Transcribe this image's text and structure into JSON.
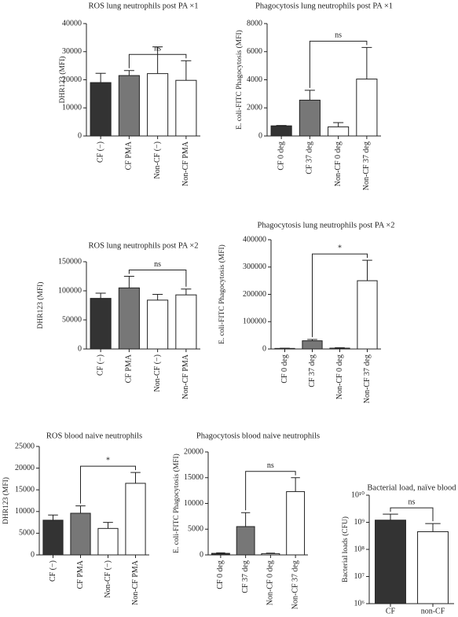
{
  "chart_data": [
    {
      "type": "bar",
      "title": "ROS lung neutrophils post PA ×1",
      "ylabel": "DHR123 (MFI)",
      "categories": [
        "CF (−)",
        "CF PMA",
        "Non-CF (−)",
        "Non-CF PMA"
      ],
      "values": [
        19000,
        21500,
        22200,
        19800
      ],
      "errors": [
        3300,
        1800,
        9500,
        7000
      ],
      "colors": [
        "#333333",
        "#777777",
        "#ffffff",
        "#ffffff"
      ],
      "ylim": [
        0,
        40000
      ],
      "yticks": [
        0,
        10000,
        20000,
        30000,
        40000
      ],
      "significance": {
        "label": "ns",
        "between": [
          "CF PMA",
          "Non-CF PMA"
        ]
      }
    },
    {
      "type": "bar",
      "title": "Phagocytosis lung neutrophils post PA ×1",
      "ylabel": "E. coli-FITC Phagocytosis (MFI)",
      "categories": [
        "CF 0 deg",
        "CF 37 deg",
        "Non-CF 0 deg",
        "Non-CF 37 deg"
      ],
      "values": [
        720,
        2550,
        650,
        4050
      ],
      "errors": [
        30,
        700,
        300,
        2250
      ],
      "colors": [
        "#333333",
        "#777777",
        "#ffffff",
        "#ffffff"
      ],
      "ylim": [
        0,
        8000
      ],
      "yticks": [
        0,
        2000,
        4000,
        6000,
        8000
      ],
      "significance": {
        "label": "ns",
        "between": [
          "CF 37 deg",
          "Non-CF 37 deg"
        ]
      }
    },
    {
      "type": "bar",
      "title": "ROS lung neutrophils post PA ×2",
      "ylabel": "DHR123 (MFI)",
      "categories": [
        "CF (−)",
        "CF PMA",
        "Non-CF (−)",
        "Non-CF PMA"
      ],
      "values": [
        87000,
        105000,
        84000,
        93000
      ],
      "errors": [
        9000,
        20000,
        10000,
        10000
      ],
      "colors": [
        "#333333",
        "#777777",
        "#ffffff",
        "#ffffff"
      ],
      "ylim": [
        0,
        150000
      ],
      "yticks": [
        0,
        50000,
        100000,
        150000
      ],
      "significance": {
        "label": "ns",
        "between": [
          "CF PMA",
          "Non-CF PMA"
        ]
      }
    },
    {
      "type": "bar",
      "title": "Phagocytosis lung neutrophils post PA ×2",
      "ylabel": "E. coli-FITC Phagocytosis (MFI)",
      "categories": [
        "CF 0 deg",
        "CF 37 deg",
        "Non-CF 0 deg",
        "Non-CF 37 deg"
      ],
      "values": [
        2000,
        30000,
        3000,
        250000
      ],
      "errors": [
        1000,
        5000,
        1500,
        75000
      ],
      "colors": [
        "#333333",
        "#777777",
        "#ffffff",
        "#ffffff"
      ],
      "ylim": [
        0,
        400000
      ],
      "yticks": [
        0,
        100000,
        200000,
        300000,
        400000
      ],
      "significance": {
        "label": "*",
        "between": [
          "CF 37 deg",
          "Non-CF 37 deg"
        ]
      }
    },
    {
      "type": "bar",
      "title": "ROS blood naive neutrophils",
      "ylabel": "DHR123 (MFI)",
      "categories": [
        "CF (−)",
        "CF PMA",
        "Non-CF (−)",
        "Non-CF PMA"
      ],
      "values": [
        8000,
        9600,
        6100,
        16500
      ],
      "errors": [
        1200,
        1700,
        1400,
        2500
      ],
      "colors": [
        "#333333",
        "#777777",
        "#ffffff",
        "#ffffff"
      ],
      "ylim": [
        0,
        25000
      ],
      "yticks": [
        0,
        5000,
        10000,
        15000,
        20000,
        25000
      ],
      "significance": {
        "label": "*",
        "between": [
          "CF PMA",
          "Non-CF PMA"
        ]
      }
    },
    {
      "type": "bar",
      "title": "Phagocytosis blood naive neutrophils",
      "ylabel": "E. coli-FITC Phagocytosis (MFI)",
      "categories": [
        "CF 0 deg",
        "CF 37 deg",
        "Non-CF 0 deg",
        "Non-CF 37 deg"
      ],
      "values": [
        300,
        5500,
        250,
        12300
      ],
      "errors": [
        100,
        2700,
        100,
        2700
      ],
      "colors": [
        "#333333",
        "#777777",
        "#ffffff",
        "#ffffff"
      ],
      "ylim": [
        0,
        20000
      ],
      "yticks": [
        0,
        5000,
        10000,
        15000,
        20000
      ],
      "significance": {
        "label": "ns",
        "between": [
          "CF 37 deg",
          "Non-CF 37 deg"
        ]
      }
    },
    {
      "type": "bar",
      "title": "Bacterial load, naïve blood",
      "ylabel": "Bacterial loads (CFU)",
      "categories": [
        "CF",
        "non-CF"
      ],
      "values": [
        1200000000,
        450000000
      ],
      "errors": [
        800000000,
        450000000
      ],
      "colors": [
        "#333333",
        "#ffffff"
      ],
      "log_scale": true,
      "ylim": [
        1000000,
        10000000000
      ],
      "yticks": [
        {
          "value": 1000000,
          "label": "10⁶"
        },
        {
          "value": 10000000,
          "label": "10⁷"
        },
        {
          "value": 100000000,
          "label": "10⁸"
        },
        {
          "value": 1000000000,
          "label": "10⁹"
        },
        {
          "value": 10000000000,
          "label": "10¹⁰"
        }
      ],
      "significance": {
        "label": "ns",
        "between": [
          "CF",
          "non-CF"
        ]
      }
    }
  ]
}
